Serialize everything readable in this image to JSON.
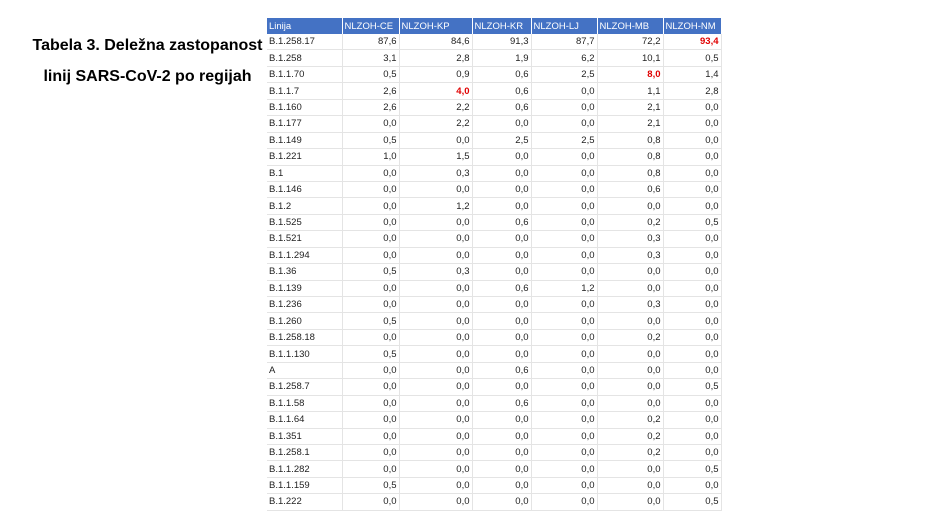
{
  "title": {
    "line1": "Tabela 3. Deležna zastopanost",
    "line2": "linij SARS-CoV-2 po regijah"
  },
  "table": {
    "header": [
      "Linija",
      "NLZOH-CE",
      "NLZOH-KP",
      "NLZOH-KR",
      "NLZOH-LJ",
      "NLZOH-MB",
      "NLZOH-NM"
    ],
    "highlight_color": "#e00000",
    "highlighted_cells": [
      [
        0,
        6
      ],
      [
        2,
        5
      ],
      [
        3,
        2
      ]
    ],
    "rows": [
      [
        "B.1.258.17",
        "87,6",
        "84,6",
        "91,3",
        "87,7",
        "72,2",
        "93,4"
      ],
      [
        "B.1.258",
        "3,1",
        "2,8",
        "1,9",
        "6,2",
        "10,1",
        "0,5"
      ],
      [
        "B.1.1.70",
        "0,5",
        "0,9",
        "0,6",
        "2,5",
        "8,0",
        "1,4"
      ],
      [
        "B.1.1.7",
        "2,6",
        "4,0",
        "0,6",
        "0,0",
        "1,1",
        "2,8"
      ],
      [
        "B.1.160",
        "2,6",
        "2,2",
        "0,6",
        "0,0",
        "2,1",
        "0,0"
      ],
      [
        "B.1.177",
        "0,0",
        "2,2",
        "0,0",
        "0,0",
        "2,1",
        "0,0"
      ],
      [
        "B.1.149",
        "0,5",
        "0,0",
        "2,5",
        "2,5",
        "0,8",
        "0,0"
      ],
      [
        "B.1.221",
        "1,0",
        "1,5",
        "0,0",
        "0,0",
        "0,8",
        "0,0"
      ],
      [
        "B.1",
        "0,0",
        "0,3",
        "0,0",
        "0,0",
        "0,8",
        "0,0"
      ],
      [
        "B.1.146",
        "0,0",
        "0,0",
        "0,0",
        "0,0",
        "0,6",
        "0,0"
      ],
      [
        "B.1.2",
        "0,0",
        "1,2",
        "0,0",
        "0,0",
        "0,0",
        "0,0"
      ],
      [
        "B.1.525",
        "0,0",
        "0,0",
        "0,6",
        "0,0",
        "0,2",
        "0,5"
      ],
      [
        "B.1.521",
        "0,0",
        "0,0",
        "0,0",
        "0,0",
        "0,3",
        "0,0"
      ],
      [
        "B.1.1.294",
        "0,0",
        "0,0",
        "0,0",
        "0,0",
        "0,3",
        "0,0"
      ],
      [
        "B.1.36",
        "0,5",
        "0,3",
        "0,0",
        "0,0",
        "0,0",
        "0,0"
      ],
      [
        "B.1.139",
        "0,0",
        "0,0",
        "0,6",
        "1,2",
        "0,0",
        "0,0"
      ],
      [
        "B.1.236",
        "0,0",
        "0,0",
        "0,0",
        "0,0",
        "0,3",
        "0,0"
      ],
      [
        "B.1.260",
        "0,5",
        "0,0",
        "0,0",
        "0,0",
        "0,0",
        "0,0"
      ],
      [
        "B.1.258.18",
        "0,0",
        "0,0",
        "0,0",
        "0,0",
        "0,2",
        "0,0"
      ],
      [
        "B.1.1.130",
        "0,5",
        "0,0",
        "0,0",
        "0,0",
        "0,0",
        "0,0"
      ],
      [
        "A",
        "0,0",
        "0,0",
        "0,6",
        "0,0",
        "0,0",
        "0,0"
      ],
      [
        "B.1.258.7",
        "0,0",
        "0,0",
        "0,0",
        "0,0",
        "0,0",
        "0,5"
      ],
      [
        "B.1.1.58",
        "0,0",
        "0,0",
        "0,6",
        "0,0",
        "0,0",
        "0,0"
      ],
      [
        "B.1.1.64",
        "0,0",
        "0,0",
        "0,0",
        "0,0",
        "0,2",
        "0,0"
      ],
      [
        "B.1.351",
        "0,0",
        "0,0",
        "0,0",
        "0,0",
        "0,2",
        "0,0"
      ],
      [
        "B.1.258.1",
        "0,0",
        "0,0",
        "0,0",
        "0,0",
        "0,2",
        "0,0"
      ],
      [
        "B.1.1.282",
        "0,0",
        "0,0",
        "0,0",
        "0,0",
        "0,0",
        "0,5"
      ],
      [
        "B.1.1.159",
        "0,5",
        "0,0",
        "0,0",
        "0,0",
        "0,0",
        "0,0"
      ],
      [
        "B.1.222",
        "0,0",
        "0,0",
        "0,0",
        "0,0",
        "0,0",
        "0,5"
      ]
    ]
  }
}
